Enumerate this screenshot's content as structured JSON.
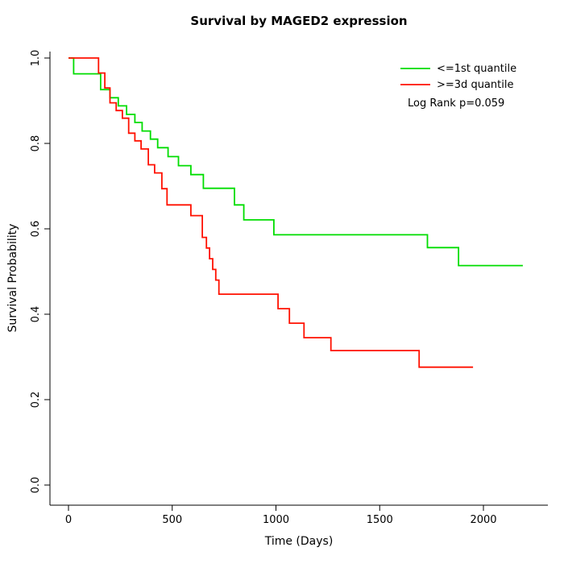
{
  "chart_data": {
    "type": "line",
    "subtype": "kaplan-meier-step",
    "title": "Survival by MAGED2 expression",
    "xlabel": "Time (Days)",
    "ylabel": "Survival Probability",
    "xlim": [
      0,
      2200
    ],
    "ylim": [
      0.0,
      1.0
    ],
    "x_ticks": [
      0,
      500,
      1000,
      1500,
      2000
    ],
    "y_ticks": [
      0.0,
      0.2,
      0.4,
      0.6,
      0.8,
      1.0
    ],
    "grid": false,
    "legend_position": "top-right",
    "annotation": "Log Rank p=0.059",
    "series": [
      {
        "name": "<=1st quantile",
        "color": "#00dd00",
        "x": [
          0,
          25,
          155,
          200,
          240,
          280,
          320,
          355,
          395,
          430,
          480,
          530,
          590,
          650,
          800,
          845,
          990,
          1730,
          1880,
          2190
        ],
        "y": [
          1.0,
          0.963,
          0.926,
          0.907,
          0.888,
          0.868,
          0.849,
          0.829,
          0.81,
          0.79,
          0.769,
          0.748,
          0.727,
          0.695,
          0.656,
          0.621,
          0.586,
          0.556,
          0.514,
          0.514
        ]
      },
      {
        "name": ">=3d quantile",
        "color": "#ff1100",
        "x": [
          0,
          145,
          175,
          200,
          230,
          260,
          290,
          320,
          350,
          385,
          415,
          450,
          475,
          590,
          645,
          665,
          680,
          695,
          710,
          725,
          1010,
          1065,
          1135,
          1265,
          1690,
          1950
        ],
        "y": [
          1.0,
          0.965,
          0.93,
          0.895,
          0.877,
          0.859,
          0.824,
          0.806,
          0.787,
          0.75,
          0.731,
          0.694,
          0.656,
          0.631,
          0.58,
          0.555,
          0.53,
          0.505,
          0.48,
          0.447,
          0.413,
          0.379,
          0.345,
          0.315,
          0.276,
          0.276
        ]
      }
    ]
  }
}
